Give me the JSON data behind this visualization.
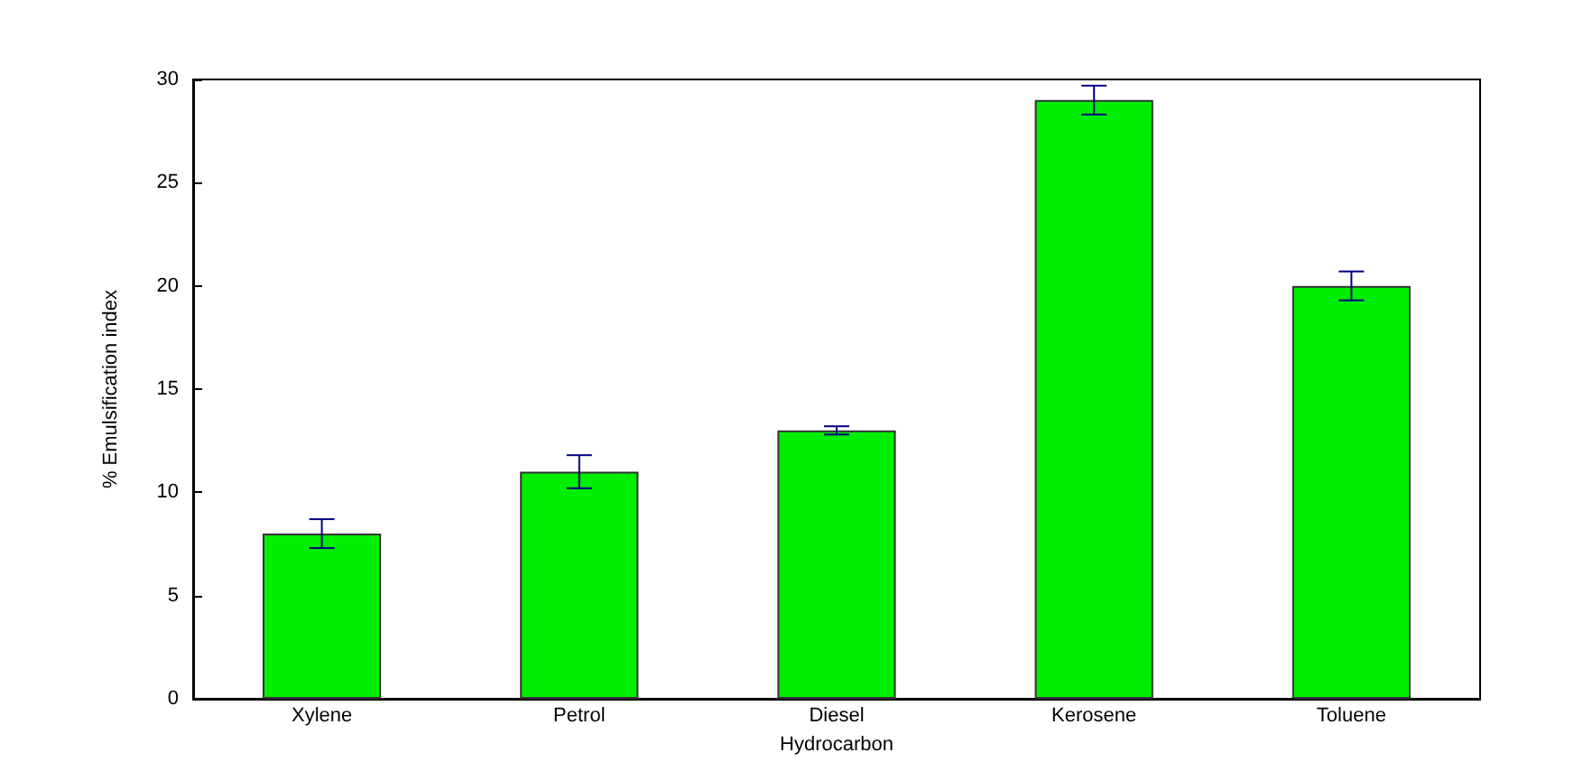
{
  "chart_data": {
    "type": "bar",
    "xlabel": "Hydrocarbon",
    "ylabel": "% Emulsification index",
    "categories": [
      "Xylene",
      "Petrol",
      "Diesel",
      "Kerosene",
      "Toluene"
    ],
    "values": [
      8,
      11,
      13,
      29,
      20
    ],
    "errors": [
      0.7,
      0.8,
      0.2,
      0.7,
      0.7
    ],
    "color": "#00ee00",
    "ylim": [
      0,
      30
    ],
    "yticks": [
      0,
      5,
      10,
      15,
      20,
      25,
      30
    ],
    "grid": false
  }
}
